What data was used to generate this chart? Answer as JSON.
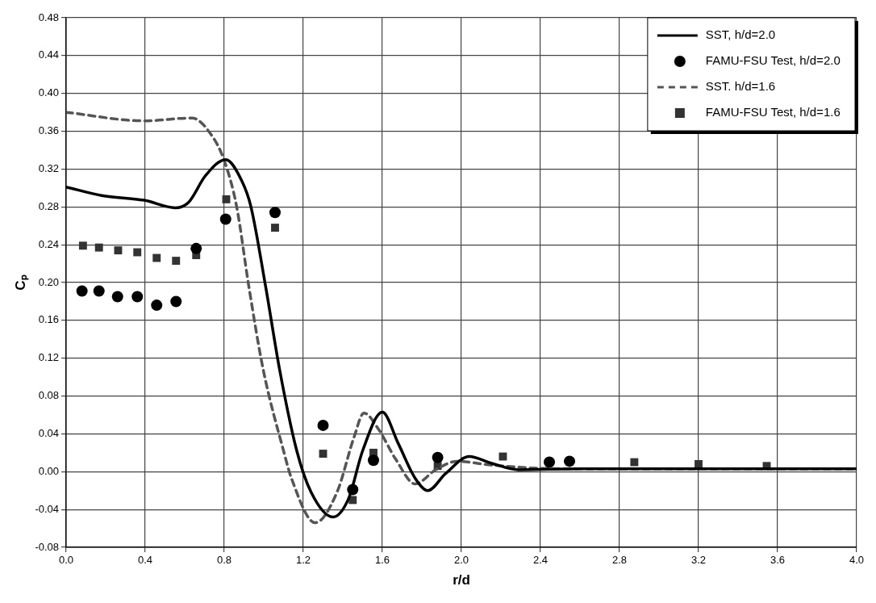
{
  "chart_data": {
    "type": "line",
    "xlabel": "r/d",
    "ylabel": "Cₚ",
    "xlim": [
      0,
      4
    ],
    "xticks": [
      {
        "value": 0,
        "label": "0.0"
      },
      0.4,
      0.8,
      1.2,
      1.6,
      {
        "value": 2,
        "label": "2.0"
      },
      2.4,
      2.8,
      3.2,
      3.6,
      {
        "value": 4,
        "label": "4.0"
      }
    ],
    "ylim": [
      -0.08,
      0.48
    ],
    "yticks": [
      {
        "value": -0.08,
        "label": "-0.08"
      },
      {
        "value": -0.04,
        "label": "-0.04"
      },
      {
        "value": 0,
        "label": "0.00"
      },
      {
        "value": 0.04,
        "label": "0.04"
      },
      {
        "value": 0.08,
        "label": "0.08"
      },
      {
        "value": 0.12,
        "label": "0.12"
      },
      {
        "value": 0.16,
        "label": "0.16"
      },
      {
        "value": 0.2,
        "label": "0.20"
      },
      {
        "value": 0.24,
        "label": "0.24"
      },
      {
        "value": 0.28,
        "label": "0.28"
      },
      {
        "value": 0.32,
        "label": "0.32"
      },
      {
        "value": 0.36,
        "label": "0.36"
      },
      {
        "value": 0.4,
        "label": "0.40"
      },
      {
        "value": 0.44,
        "label": "0.44"
      },
      {
        "value": 0.48,
        "label": "0.48"
      }
    ],
    "grid": true,
    "legend": "top right",
    "series": [
      {
        "name": "SST, h/d=2.0",
        "type": "line",
        "color": "#000000",
        "line_style": "solid",
        "marker": "none",
        "x": [
          0,
          0.18,
          0.395,
          0.553,
          0.62,
          0.705,
          0.807,
          0.89,
          0.934,
          1.01,
          1.08,
          1.167,
          1.24,
          1.35,
          1.43,
          1.5,
          1.6,
          1.68,
          1.766,
          1.83,
          1.92,
          2.04,
          2.15,
          2.29,
          2.6,
          3.0,
          3.5,
          4.0
        ],
        "values": [
          0.301,
          0.292,
          0.287,
          0.279,
          0.285,
          0.313,
          0.33,
          0.307,
          0.281,
          0.195,
          0.108,
          0.022,
          -0.022,
          -0.048,
          -0.028,
          0.022,
          0.063,
          0.03,
          -0.007,
          -0.02,
          -0.002,
          0.016,
          0.009,
          0.002,
          0.003,
          0.003,
          0.003,
          0.003
        ]
      },
      {
        "name": "FAMU-FSU Test, h/d=2.0",
        "type": "scatter",
        "color": "#000000",
        "marker": "circle",
        "x": [
          0.08,
          0.166,
          0.26,
          0.36,
          0.458,
          0.556,
          0.658,
          0.807,
          1.057,
          1.3,
          1.45,
          1.555,
          1.88,
          2.445,
          2.547
        ],
        "values": [
          0.191,
          0.191,
          0.185,
          0.185,
          0.176,
          0.18,
          0.236,
          0.267,
          0.274,
          0.049,
          -0.019,
          0.012,
          0.015,
          0.01,
          0.011
        ]
      },
      {
        "name": "SST. h/d=1.6",
        "type": "line",
        "color": "#555555",
        "line_style": "dashed",
        "marker": "none",
        "x": [
          0,
          0.395,
          0.637,
          0.735,
          0.798,
          0.862,
          0.925,
          0.997,
          1.1,
          1.14,
          1.26,
          1.37,
          1.456,
          1.507,
          1.58,
          1.668,
          1.766,
          1.87,
          1.98,
          2.15,
          2.5,
          3.0,
          3.5,
          4.0
        ],
        "values": [
          0.38,
          0.371,
          0.374,
          0.356,
          0.33,
          0.281,
          0.195,
          0.108,
          0.022,
          -0.007,
          -0.054,
          -0.022,
          0.036,
          0.062,
          0.045,
          0.013,
          -0.013,
          0.002,
          0.011,
          0.007,
          0.003,
          0.003,
          0.003,
          0.003
        ]
      },
      {
        "name": "FAMU-FSU Test, h/d=1.6",
        "type": "scatter",
        "color": "#333333",
        "marker": "square",
        "x": [
          0.085,
          0.166,
          0.263,
          0.36,
          0.458,
          0.556,
          0.658,
          0.81,
          1.057,
          1.3,
          1.45,
          1.555,
          1.88,
          2.21,
          2.875,
          3.2,
          3.545
        ],
        "values": [
          0.239,
          0.237,
          0.234,
          0.232,
          0.226,
          0.223,
          0.229,
          0.288,
          0.258,
          0.019,
          -0.03,
          0.02,
          0.006,
          0.016,
          0.01,
          0.008,
          0.006
        ]
      }
    ]
  }
}
